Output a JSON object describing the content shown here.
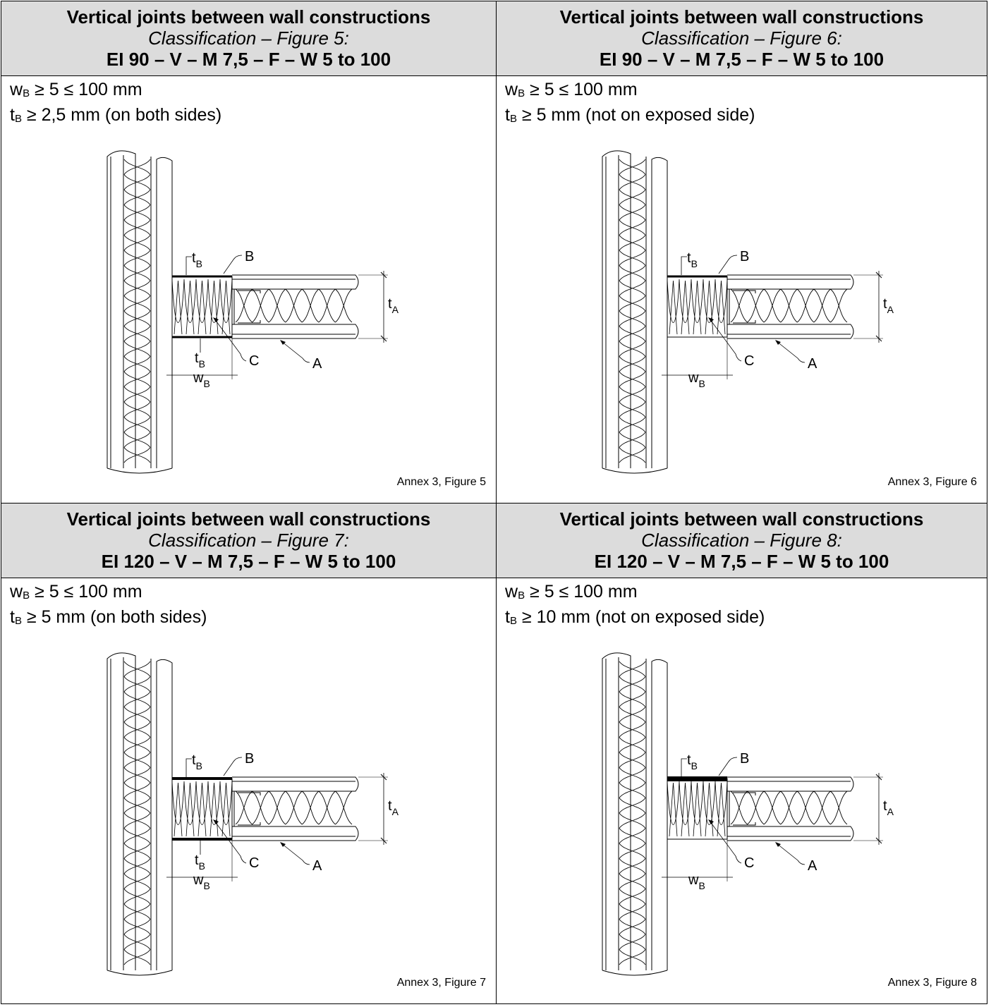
{
  "panels": [
    {
      "title": "Vertical joints between wall constructions",
      "subtitle": "Classification – Figure 5:",
      "classification": "EI 90 – V – M 7,5 – F – W 5 to 100",
      "w_line": {
        "sym": "w",
        "sub": "B",
        "text": " ≥ 5 ≤ 100 mm"
      },
      "t_line": {
        "sym": "t",
        "sub": "B",
        "text": " ≥ 2,5 mm (on both sides)"
      },
      "labels": {
        "B": "B",
        "C": "C",
        "A": "A",
        "tB": "t",
        "tB_sub": "B",
        "wB": "w",
        "wB_sub": "B",
        "tA": "t",
        "tA_sub": "A"
      },
      "caption": "Annex 3, Figure 5",
      "band": "both-thin"
    },
    {
      "title": "Vertical joints between wall constructions",
      "subtitle": "Classification – Figure 6:",
      "classification": "EI 90 – V – M 7,5 – F – W 5 to 100",
      "w_line": {
        "sym": "w",
        "sub": "B",
        "text": " ≥ 5 ≤ 100 mm"
      },
      "t_line": {
        "sym": "t",
        "sub": "B",
        "text": " ≥ 5 mm (not on exposed side)"
      },
      "labels": {
        "B": "B",
        "C": "C",
        "A": "A",
        "tB": "t",
        "tB_sub": "B",
        "wB": "w",
        "wB_sub": "B",
        "tA": "t",
        "tA_sub": "A"
      },
      "caption": "Annex 3, Figure 6",
      "band": "top-only"
    },
    {
      "title": "Vertical joints between wall constructions",
      "subtitle": "Classification – Figure 7:",
      "classification": "EI 120 – V – M 7,5 – F – W 5 to 100",
      "w_line": {
        "sym": "w",
        "sub": "B",
        "text": " ≥ 5 ≤ 100 mm"
      },
      "t_line": {
        "sym": "t",
        "sub": "B",
        "text": " ≥ 5 mm (on both sides)"
      },
      "labels": {
        "B": "B",
        "C": "C",
        "A": "A",
        "tB": "t",
        "tB_sub": "B",
        "wB": "w",
        "wB_sub": "B",
        "tA": "t",
        "tA_sub": "A"
      },
      "caption": "Annex 3, Figure 7",
      "band": "both-thick"
    },
    {
      "title": "Vertical joints between wall constructions",
      "subtitle": "Classification – Figure 8:",
      "classification": "EI 120 – V – M 7,5 – F – W 5 to 100",
      "w_line": {
        "sym": "w",
        "sub": "B",
        "text": " ≥ 5 ≤ 100 mm"
      },
      "t_line": {
        "sym": "t",
        "sub": "B",
        "text": " ≥ 10 mm (not on exposed side)"
      },
      "labels": {
        "B": "B",
        "C": "C",
        "A": "A",
        "tB": "t",
        "tB_sub": "B",
        "wB": "w",
        "wB_sub": "B",
        "tA": "t",
        "tA_sub": "A"
      },
      "caption": "Annex 3, Figure 8",
      "band": "top-thick"
    }
  ]
}
